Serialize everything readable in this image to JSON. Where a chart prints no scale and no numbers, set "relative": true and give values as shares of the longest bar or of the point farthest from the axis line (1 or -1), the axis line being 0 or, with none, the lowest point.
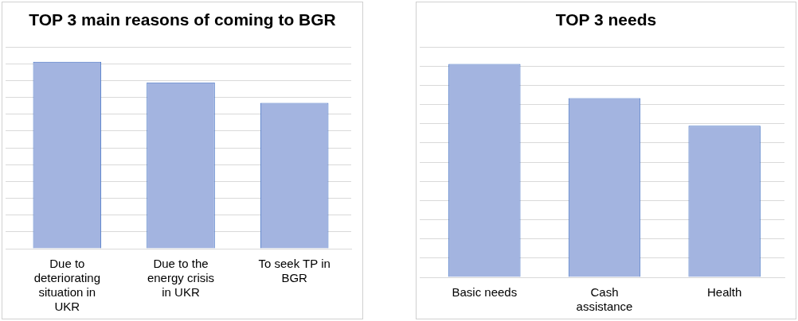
{
  "chart_data": [
    {
      "type": "bar",
      "title": "TOP 3 main reasons of coming to BGR",
      "categories": [
        "Due to deteriorating situation in UKR",
        "Due to the energy crisis in UKR",
        "To seek TP in BGR"
      ],
      "values": [
        1,
        0.89,
        0.78
      ],
      "color": "#a3b4e0",
      "relative": true,
      "grid": "y"
    },
    {
      "type": "bar",
      "title": "TOP 3 needs",
      "categories": [
        "Basic needs",
        "Cash assistance",
        "Health"
      ],
      "values": [
        1,
        0.84,
        0.71
      ],
      "color": "#a3b4e0",
      "relative": true,
      "grid": "y"
    }
  ]
}
